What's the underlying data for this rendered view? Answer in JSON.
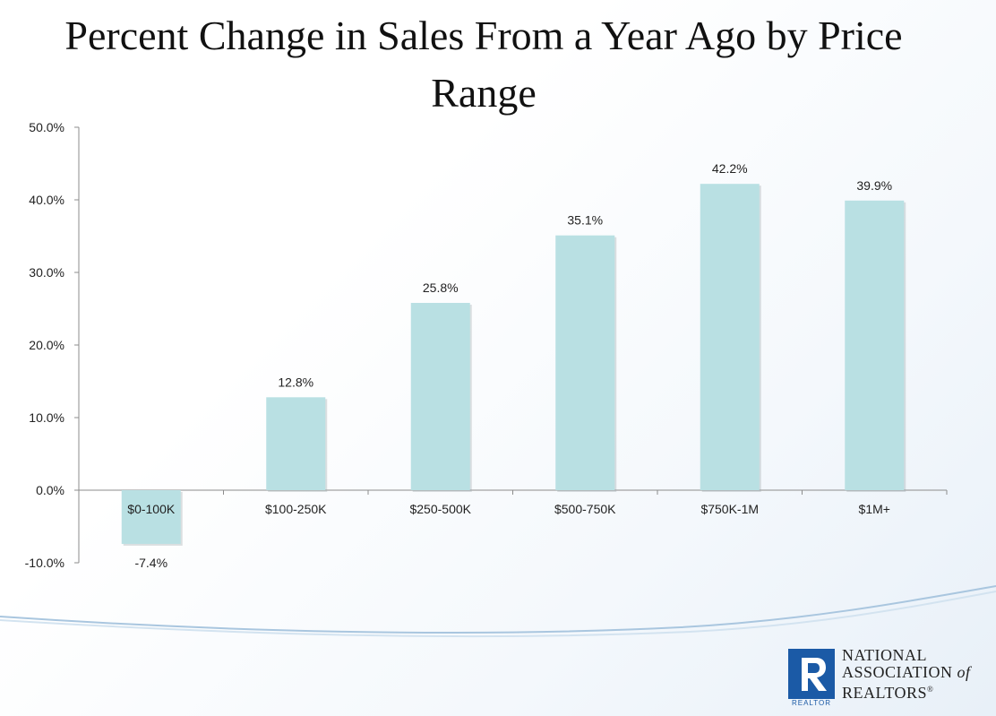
{
  "slide": {
    "title_line1": "Percent Change in Sales From a Year Ago by Price",
    "title_line2": "Range"
  },
  "logo": {
    "r_letter": "R",
    "r_caption": "REALTOR",
    "line1": "NATIONAL",
    "line2": "ASSOCIATION",
    "of": "of",
    "line3": "REALTORS",
    "registered": "®"
  },
  "colors": {
    "bar": "#b9e0e3",
    "axis": "#8c8c8c",
    "brand": "#1b5aa6"
  },
  "chart_data": {
    "type": "bar",
    "title": "Percent Change in Sales From a Year Ago by Price Range",
    "categories": [
      "$0-100K",
      "$100-250K",
      "$250-500K",
      "$500-750K",
      "$750K-1M",
      "$1M+"
    ],
    "values": [
      -7.4,
      12.8,
      25.8,
      35.1,
      42.2,
      39.9
    ],
    "data_labels": [
      "-7.4%",
      "12.8%",
      "25.8%",
      "35.1%",
      "42.2%",
      "39.9%"
    ],
    "ylim": [
      -10,
      50
    ],
    "y_ticks": [
      50,
      40,
      30,
      20,
      10,
      0,
      -10
    ],
    "y_tick_labels": [
      "50.0%",
      "40.0%",
      "30.0%",
      "20.0%",
      "10.0%",
      "0.0%",
      "-10.0%"
    ],
    "xlabel": "",
    "ylabel": "",
    "grid": false,
    "legend": "none"
  }
}
